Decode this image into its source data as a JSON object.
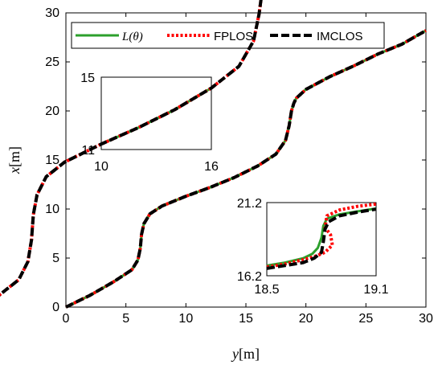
{
  "chart_data": [
    {
      "type": "line",
      "xlabel": {
        "var": "y",
        "unit": "[m]"
      },
      "ylabel": {
        "var": "x",
        "unit": "[m]"
      },
      "xlim": [
        0,
        30
      ],
      "ylim": [
        0,
        30
      ],
      "xticks": [
        "0",
        "5",
        "10",
        "15",
        "20",
        "25",
        "30"
      ],
      "yticks": [
        "0",
        "5",
        "10",
        "15",
        "20",
        "25",
        "30"
      ],
      "grid": false,
      "legend_position": "top",
      "series": [
        {
          "name": "L(θ)",
          "color": "#2ca02c",
          "style": "solid",
          "x": [
            0,
            2,
            4,
            5.5,
            6.0,
            6.2,
            6.3,
            6.5,
            7,
            8,
            10,
            12,
            14,
            16,
            17.5,
            18.3,
            18.6,
            18.8,
            19.0,
            19.2,
            20,
            22,
            24,
            26,
            28,
            30
          ],
          "y": [
            0,
            1.2,
            2.6,
            3.8,
            4.8,
            6.0,
            7.4,
            8.5,
            9.5,
            10.3,
            11.3,
            12.2,
            13.2,
            14.4,
            15.6,
            17.0,
            18.5,
            20.0,
            20.8,
            21.3,
            22.2,
            23.5,
            24.6,
            25.8,
            26.8,
            28.2
          ]
        },
        {
          "name": "FPLOS",
          "color": "#ff0000",
          "style": "dotted"
        },
        {
          "name": "IMCLOS",
          "color": "#000000",
          "style": "dashed"
        }
      ]
    },
    {
      "type": "line",
      "inset": true,
      "xlim": [
        10,
        16
      ],
      "ylim": [
        11,
        15
      ],
      "xticks": [
        "10",
        "16"
      ],
      "yticks": [
        "11",
        "15"
      ],
      "series": [
        {
          "name": "L(θ)",
          "x": [
            10,
            12,
            14,
            16
          ],
          "y": [
            11.3,
            12.2,
            13.2,
            14.4
          ]
        }
      ]
    },
    {
      "type": "line",
      "inset": true,
      "xlim": [
        18.5,
        19.1
      ],
      "ylim": [
        16.2,
        21.2
      ],
      "xticks": [
        "18.5",
        "19.1"
      ],
      "yticks": [
        "16.2",
        "21.2"
      ],
      "series": [
        {
          "name": "L(θ)",
          "x": [
            18.5,
            18.6,
            18.7,
            18.75,
            18.78,
            18.8,
            18.81,
            18.83,
            18.9,
            19.0,
            19.1
          ],
          "y": [
            16.9,
            17.1,
            17.4,
            17.7,
            18.1,
            18.8,
            19.6,
            20.1,
            20.4,
            20.6,
            20.8
          ]
        },
        {
          "name": "FPLOS",
          "x": [
            18.5,
            18.6,
            18.7,
            18.76,
            18.82,
            18.86,
            18.85,
            18.82,
            18.83,
            18.9,
            19.0,
            19.1
          ],
          "y": [
            16.8,
            17.0,
            17.3,
            17.5,
            17.8,
            18.3,
            19.0,
            19.5,
            20.3,
            20.7,
            20.95,
            21.1
          ]
        },
        {
          "name": "IMCLOS",
          "x": [
            18.5,
            18.6,
            18.7,
            18.76,
            18.8,
            18.81,
            18.82,
            18.84,
            18.9,
            19.0,
            19.1
          ],
          "y": [
            16.7,
            16.9,
            17.1,
            17.4,
            17.8,
            18.5,
            19.4,
            19.9,
            20.3,
            20.55,
            20.75
          ]
        }
      ]
    }
  ],
  "legend": {
    "items": [
      {
        "label": "L(θ)",
        "color": "#2ca02c",
        "style": "solid"
      },
      {
        "label": "FPLOS",
        "color": "#ff0000",
        "style": "dotted"
      },
      {
        "label": "IMCLOS",
        "color": "#000000",
        "style": "dashed"
      }
    ]
  }
}
